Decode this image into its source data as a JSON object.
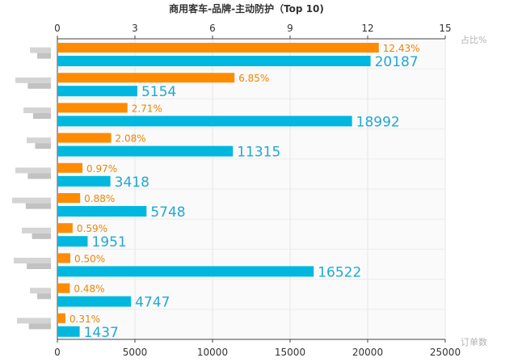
{
  "chart_data": {
    "type": "bar",
    "title": "商用客车-品牌-主动防护（Top 10)",
    "orientation": "horizontal",
    "legend": "none",
    "grid": true,
    "category_labels_obscured": true,
    "categories": [
      "",
      "",
      "",
      "",
      "",
      "",
      "",
      "",
      "",
      ""
    ],
    "axes": {
      "top": {
        "name": "占比%",
        "min": 0,
        "max": 15,
        "ticks": [
          "0",
          "3",
          "6",
          "9",
          "12",
          "15"
        ]
      },
      "bottom": {
        "name": "订单数",
        "min": 0,
        "max": 25000,
        "ticks": [
          "0",
          "5000",
          "10000",
          "15000",
          "20000",
          "25000"
        ]
      }
    },
    "series": [
      {
        "axis": "top",
        "color": "#ff8c00",
        "values": [
          12.43,
          6.85,
          2.71,
          2.08,
          0.97,
          0.88,
          0.59,
          0.5,
          0.48,
          0.31
        ],
        "labels": [
          "12.43%",
          "6.85%",
          "2.71%",
          "2.08%",
          "0.97%",
          "0.88%",
          "0.59%",
          "0.50%",
          "0.48%",
          "0.31%"
        ]
      },
      {
        "axis": "bottom",
        "color": "#00b7e0",
        "values": [
          20187,
          5154,
          18992,
          11315,
          3418,
          5748,
          1951,
          16522,
          4747,
          1437
        ],
        "labels": [
          "20187",
          "5154",
          "18992",
          "11315",
          "3418",
          "5748",
          "1951",
          "16522",
          "4747",
          "1437"
        ]
      }
    ]
  }
}
